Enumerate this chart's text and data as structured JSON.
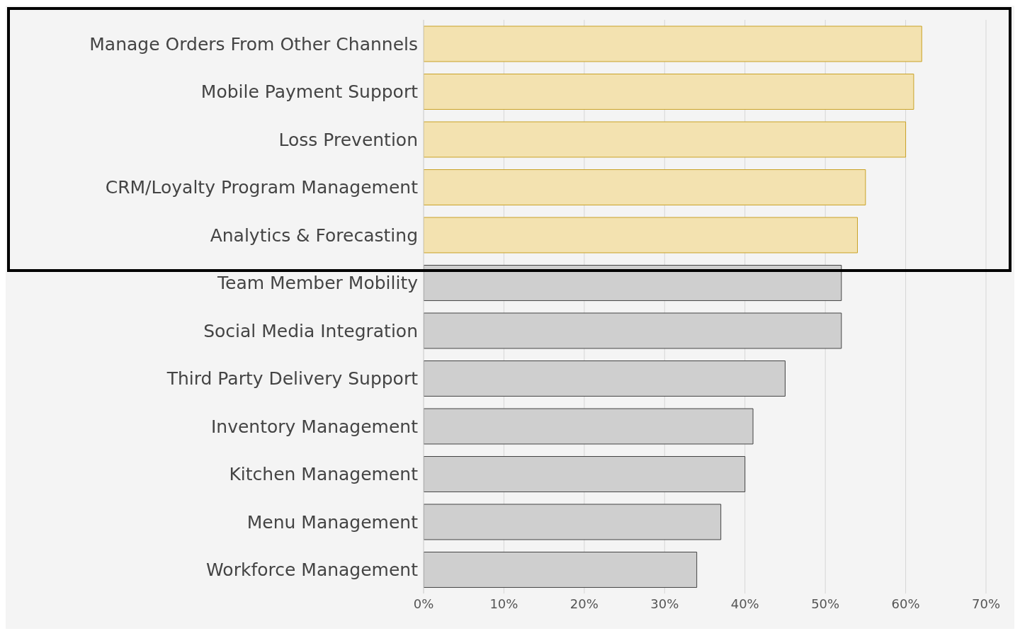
{
  "chart_data": {
    "type": "bar",
    "orientation": "horizontal",
    "categories": [
      "Manage Orders From Other Channels",
      "Mobile Payment Support",
      "Loss Prevention",
      "CRM/Loyalty Program Management",
      "Analytics & Forecasting",
      "Team Member Mobility",
      "Social Media Integration",
      "Third Party Delivery Support",
      "Inventory Management",
      "Kitchen Management",
      "Menu Management",
      "Workforce Management"
    ],
    "values": [
      62,
      61,
      60,
      55,
      54,
      52,
      52,
      45,
      41,
      40,
      37,
      34
    ],
    "colors": [
      "#f3e2b0",
      "#f3e2b0",
      "#f3e2b0",
      "#f3e2b0",
      "#f3e2b0",
      "#cfcfcf",
      "#cfcfcf",
      "#cfcfcf",
      "#cfcfcf",
      "#cfcfcf",
      "#cfcfcf",
      "#cfcfcf"
    ],
    "xlim": [
      0,
      70
    ],
    "xticks": [
      {
        "value": 0,
        "label": "0%"
      },
      {
        "value": 10,
        "label": "10%"
      },
      {
        "value": 20,
        "label": "20%"
      },
      {
        "value": 30,
        "label": "30%"
      },
      {
        "value": 40,
        "label": "40%"
      },
      {
        "value": 50,
        "label": "50%"
      },
      {
        "value": 60,
        "label": "60%"
      },
      {
        "value": 70,
        "label": "70%"
      }
    ],
    "grid": "x"
  }
}
